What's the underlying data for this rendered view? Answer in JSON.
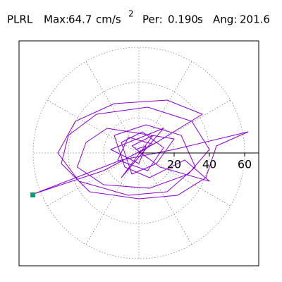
{
  "chart_data": {
    "type": "polar-trajectory",
    "station": "PLRL",
    "max_text": "Max:",
    "max": 64.7,
    "unit": "cm/s",
    "unit_exponent": "2",
    "period_text": "Per:",
    "period": {
      "value": 0.19,
      "label": "0.190"
    },
    "period_unit": "s",
    "angle_text": "Ang:",
    "angle": 201.6,
    "rlim": [
      0,
      68
    ],
    "rticks": [
      20,
      40,
      60
    ],
    "thetaticks": [
      0,
      30,
      60,
      90,
      120,
      150,
      180,
      210,
      240,
      270,
      300,
      330
    ],
    "color": "#8a00d4",
    "max_marker_color": "#00a07a",
    "x": [
      0,
      8,
      -6,
      -12,
      5,
      14,
      2,
      -10,
      -4,
      10,
      20,
      -18,
      -30,
      -35,
      -20,
      6,
      28,
      40,
      30,
      5,
      -24,
      -40,
      -44,
      -28,
      0,
      22,
      38,
      44,
      62,
      20,
      -10,
      -59,
      -20,
      10,
      36,
      16,
      -14,
      -36,
      -46,
      -34,
      -6,
      16,
      32,
      24,
      4,
      -14,
      -8,
      6,
      26,
      40,
      12,
      -4,
      8,
      -10,
      14,
      -16,
      0,
      4,
      -2
    ],
    "y": [
      0,
      5,
      9,
      -4,
      -10,
      3,
      12,
      6,
      -12,
      -6,
      8,
      14,
      6,
      -8,
      -18,
      -20,
      -12,
      2,
      18,
      26,
      22,
      10,
      -6,
      -22,
      -26,
      -24,
      -14,
      4,
      12,
      2,
      -4,
      -23,
      -10,
      6,
      22,
      30,
      28,
      18,
      0,
      -16,
      -24,
      -22,
      -8,
      10,
      16,
      10,
      -8,
      -14,
      -4,
      -16,
      -8,
      4,
      10,
      -14,
      14,
      2,
      -6,
      4,
      2
    ]
  }
}
